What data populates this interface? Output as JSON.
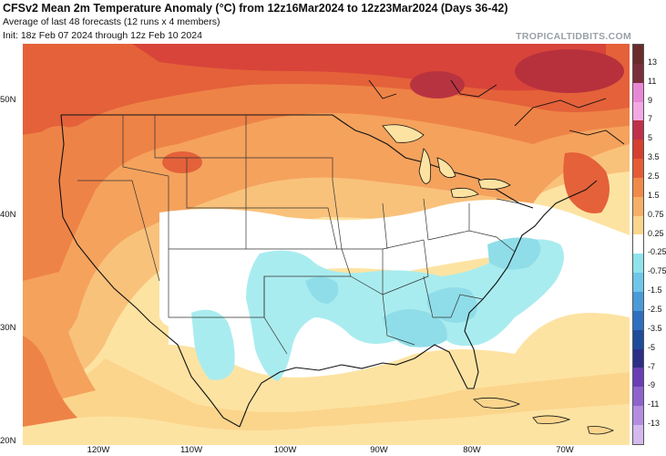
{
  "header": {
    "title": "CFSv2 Mean 2m Temperature Anomaly (°C) from 12z16Mar2024 to 12z23Mar2024 (Days 36-42)",
    "subtitle1": "Average of last 48 forecasts (12 runs x 4 members)",
    "subtitle2": "Init: 18z Feb 07 2024 through 12z Feb 10 2024",
    "watermark": "TROPICALTIDBITS.COM"
  },
  "map": {
    "lat_labels": [
      "50N",
      "40N",
      "30N",
      "20N"
    ],
    "lon_labels": [
      "120W",
      "110W",
      "100W",
      "90W",
      "80W",
      "70W"
    ]
  },
  "colorbar": {
    "labels": [
      "13",
      "11",
      "9",
      "7",
      "5",
      "3.5",
      "2.5",
      "1.5",
      "0.75",
      "0.25",
      "-0.25",
      "-0.75",
      "-1.5",
      "-2.5",
      "-3.5",
      "-5",
      "-7",
      "-9",
      "-11",
      "-13"
    ],
    "colors": [
      "#6b2b2b",
      "#7a2f3a",
      "#e887d6",
      "#f3a8e4",
      "#c0304a",
      "#d6402f",
      "#e55c34",
      "#f08a48",
      "#f6b066",
      "#fbd58c",
      "#ffffff",
      "#8fe3ec",
      "#6ec6e8",
      "#4a9bd8",
      "#2f6fc0",
      "#1f4c9a",
      "#2c2f86",
      "#6a3fb5",
      "#8e63cc",
      "#b48ce0",
      "#d4b8ee"
    ]
  }
}
